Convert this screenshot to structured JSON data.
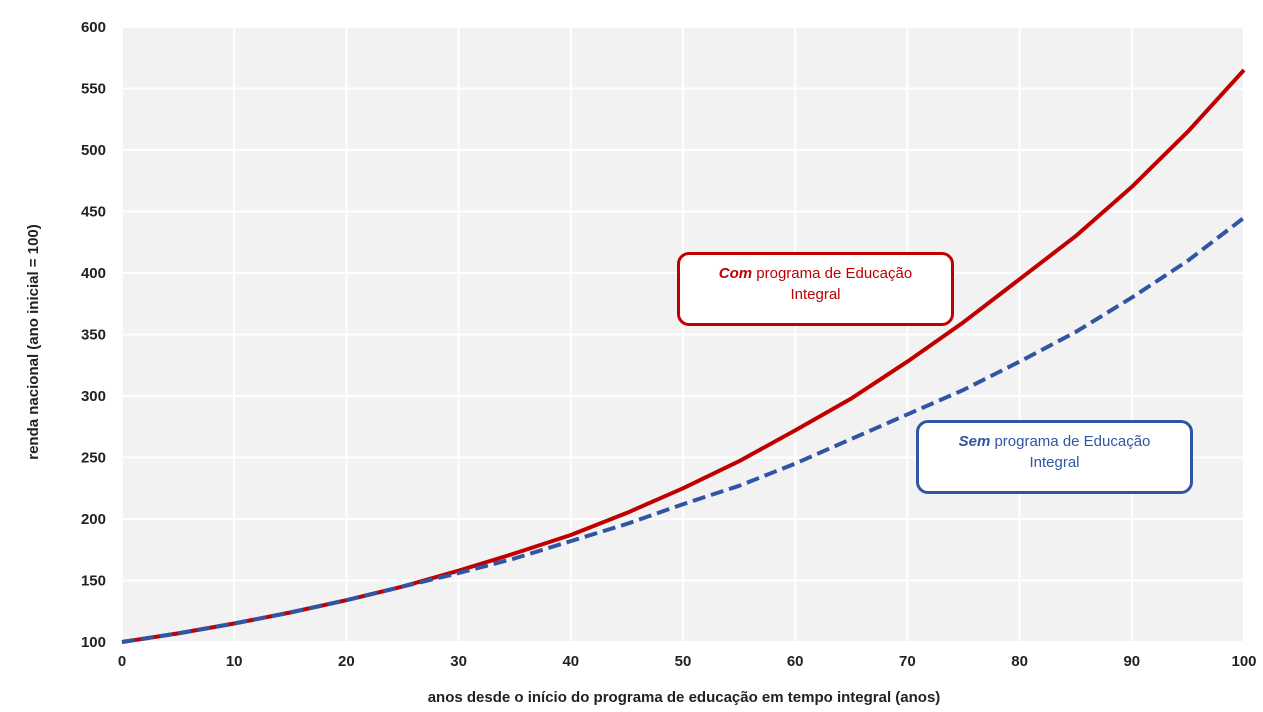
{
  "chart_data": {
    "type": "line",
    "xlabel": "anos desde o início do programa de educação em tempo integral (anos)",
    "ylabel": "renda nacional (ano inicial = 100)",
    "xlim": [
      0,
      100
    ],
    "ylim": [
      100,
      600
    ],
    "x_ticks": [
      "0",
      "10",
      "20",
      "30",
      "40",
      "50",
      "60",
      "70",
      "80",
      "90",
      "100"
    ],
    "y_ticks": [
      "100",
      "150",
      "200",
      "250",
      "300",
      "350",
      "400",
      "450",
      "500",
      "550",
      "600"
    ],
    "grid": true,
    "x": [
      0,
      5,
      10,
      15,
      20,
      25,
      30,
      35,
      40,
      45,
      50,
      55,
      60,
      65,
      70,
      75,
      80,
      85,
      90,
      95,
      100
    ],
    "series": [
      {
        "name": "Com programa de Educação Integral",
        "style": "solid",
        "color": "#c00000",
        "values": [
          100,
          107,
          115,
          124,
          134,
          145,
          158,
          172,
          187,
          205,
          225,
          247,
          272,
          298,
          328,
          360,
          395,
          430,
          470,
          515,
          565
        ]
      },
      {
        "name": "Sem programa de Educação Integral",
        "style": "dashed",
        "color": "#2f55a4",
        "values": [
          100,
          107,
          115,
          124,
          134,
          145,
          156,
          168,
          182,
          196,
          212,
          227,
          245,
          265,
          285,
          305,
          328,
          352,
          380,
          410,
          445
        ]
      }
    ],
    "annotations": [
      {
        "emph": "Com",
        "rest": " programa de Educação",
        "line2": "Integral"
      },
      {
        "emph": "Sem",
        "rest": " programa de Educação",
        "line2": "Integral"
      }
    ]
  }
}
